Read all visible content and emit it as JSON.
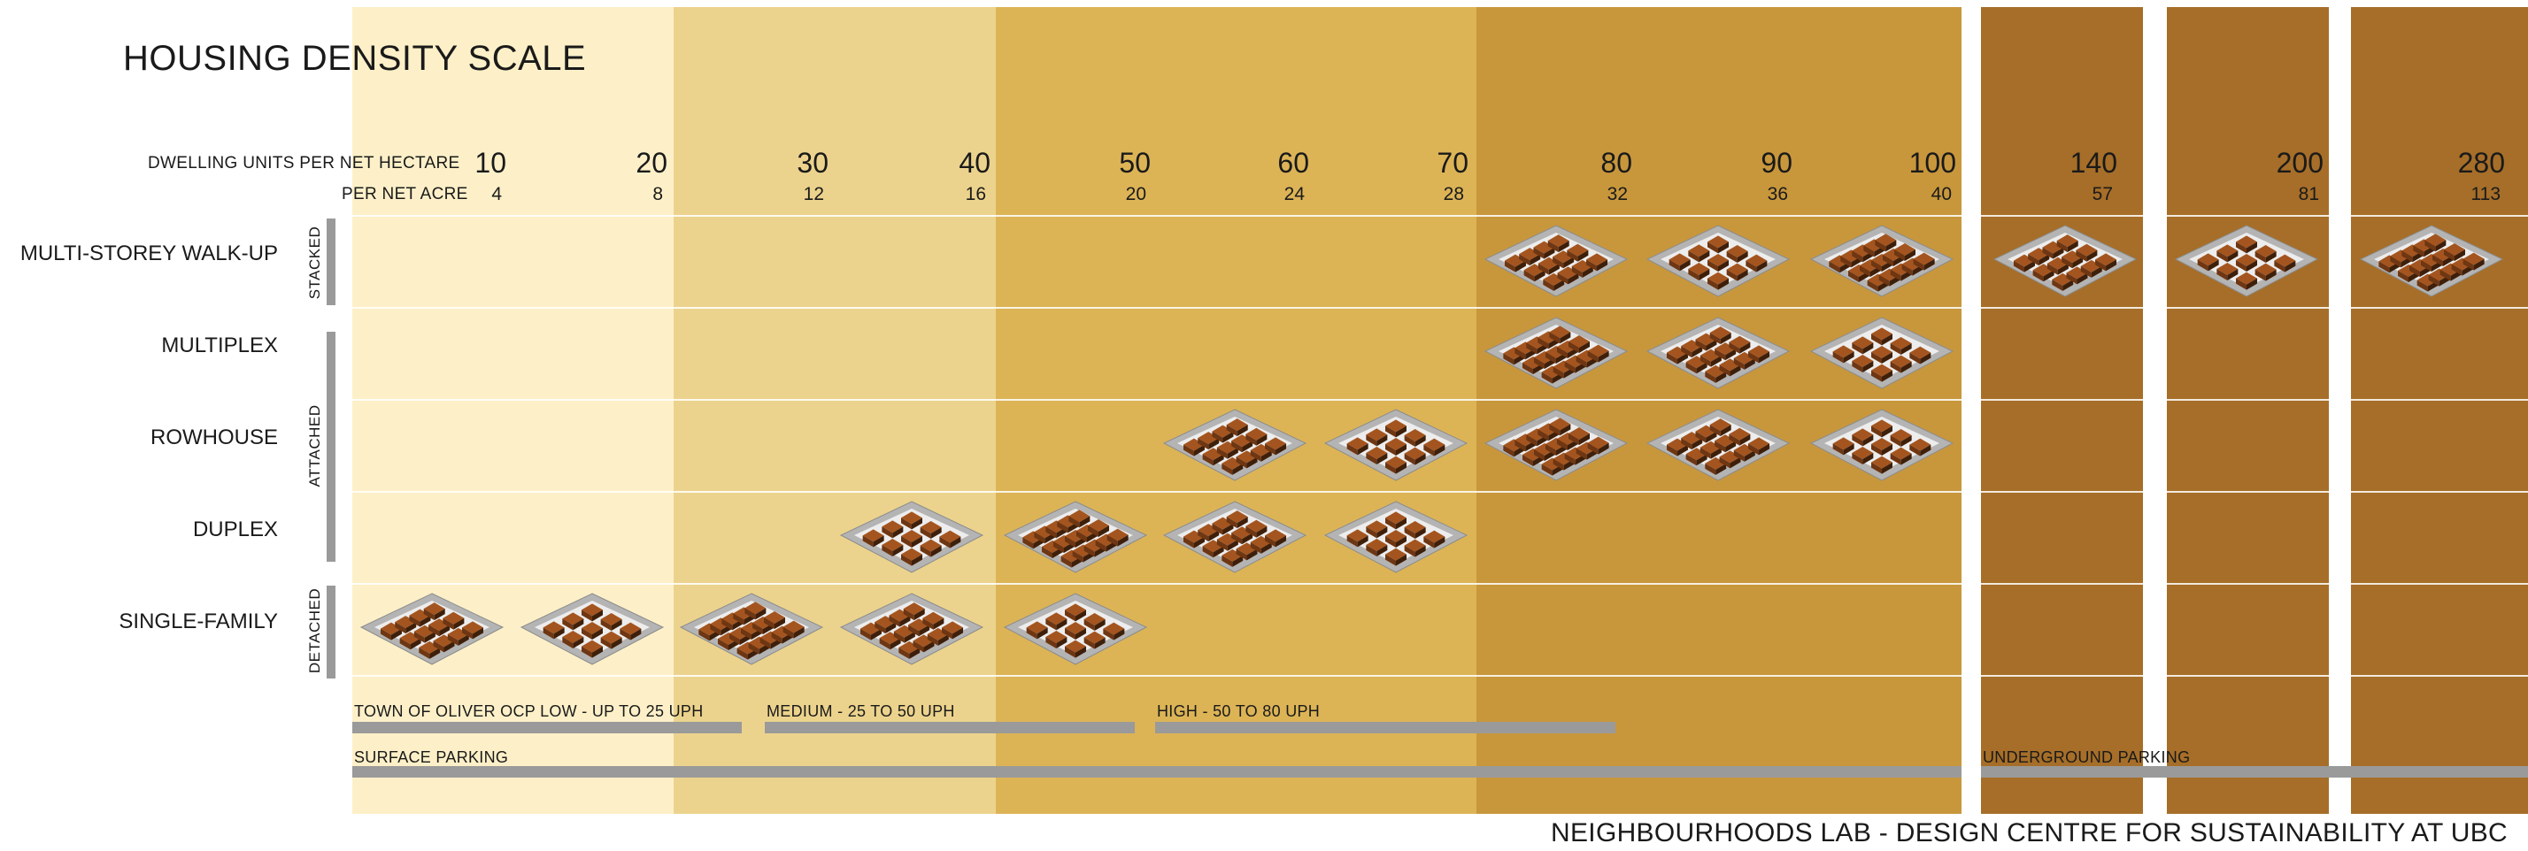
{
  "title": "HOUSING DENSITY SCALE",
  "axis": {
    "units_per_hectare_label": "DWELLING UNITS PER NET HECTARE",
    "units_per_acre_label": "PER NET ACRE"
  },
  "columns": [
    {
      "ha": "10",
      "acre": "4"
    },
    {
      "ha": "20",
      "acre": "8"
    },
    {
      "ha": "30",
      "acre": "12"
    },
    {
      "ha": "40",
      "acre": "16"
    },
    {
      "ha": "50",
      "acre": "20"
    },
    {
      "ha": "60",
      "acre": "24"
    },
    {
      "ha": "70",
      "acre": "28"
    },
    {
      "ha": "80",
      "acre": "32"
    },
    {
      "ha": "90",
      "acre": "36"
    },
    {
      "ha": "100",
      "acre": "40"
    },
    {
      "ha": "140",
      "acre": "57"
    },
    {
      "ha": "200",
      "acre": "81"
    },
    {
      "ha": "280",
      "acre": "113"
    }
  ],
  "rows": [
    {
      "label": "MULTI-STOREY WALK-UP",
      "cells": [
        7,
        8,
        9,
        10,
        11,
        12
      ]
    },
    {
      "label": "MULTIPLEX",
      "cells": [
        7,
        8,
        9
      ]
    },
    {
      "label": "ROWHOUSE",
      "cells": [
        5,
        6,
        7,
        8,
        9
      ]
    },
    {
      "label": "DUPLEX",
      "cells": [
        3,
        4,
        5,
        6
      ]
    },
    {
      "label": "SINGLE-FAMILY",
      "cells": [
        0,
        1,
        2,
        3,
        4
      ]
    }
  ],
  "groups": {
    "stacked": "STACKED",
    "attached": "ATTACHED",
    "detached": "DETACHED"
  },
  "ranges": {
    "low": "TOWN OF OLIVER OCP LOW - UP TO 25 UPH",
    "medium": "MEDIUM - 25 TO 50 UPH",
    "high": "HIGH - 50 TO 80 UPH"
  },
  "parking": {
    "surface": "SURFACE PARKING",
    "underground": "UNDERGROUND PARKING"
  },
  "credit": "NEIGHBOURHOODS LAB  -  DESIGN CENTRE FOR SUSTAINABILITY AT UBC",
  "colors": {
    "band_1": "#fdf0c8",
    "band_2": "#ecd38d",
    "band_3": "#dcb456",
    "band_4": "#c8973c",
    "band_5": "#a66e28",
    "building": "#a4551f",
    "site": "#a9a9a9",
    "bar": "#9a9a9a"
  }
}
